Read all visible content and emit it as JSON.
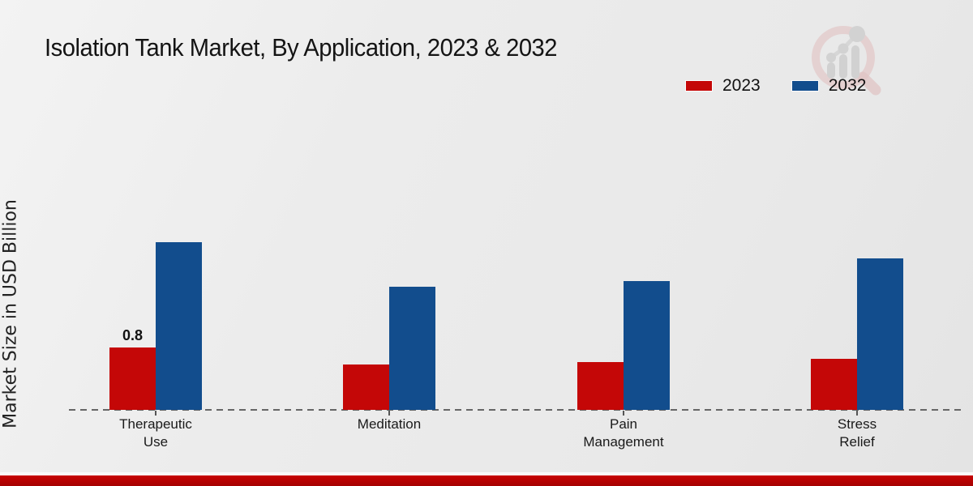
{
  "page": {
    "footer_accent_color": "#b30303",
    "background_color": "#ececec"
  },
  "logo": {
    "name": "market-research-chart-watermark-logo",
    "ring_color": "#e3c6c6",
    "bars_color": "#cfcfcf"
  },
  "chart_data": {
    "type": "bar",
    "title": "Isolation Tank Market, By Application, 2023 & 2032",
    "ylabel": "Market Size in USD Billion",
    "xlabel": "",
    "categories": [
      "Therapeutic Use",
      "Meditation",
      "Pain Management",
      "Stress Relief"
    ],
    "category_lines": [
      [
        "Therapeutic",
        "Use"
      ],
      [
        "Meditation"
      ],
      [
        "Pain",
        "Management"
      ],
      [
        "Stress",
        "Relief"
      ]
    ],
    "series": [
      {
        "name": "2023",
        "color": "#c40707",
        "values": [
          0.8,
          0.58,
          0.61,
          0.65
        ]
      },
      {
        "name": "2032",
        "color": "#124d8d",
        "values": [
          2.15,
          1.58,
          1.65,
          1.94
        ]
      }
    ],
    "annotations": [
      {
        "text": "0.8",
        "series_index": 0,
        "category_index": 0
      }
    ],
    "ylim": [
      0,
      2.5
    ],
    "grid": false,
    "y_ticks_visible": false,
    "legend_position": "top-right",
    "baseline_style": "dashed"
  }
}
